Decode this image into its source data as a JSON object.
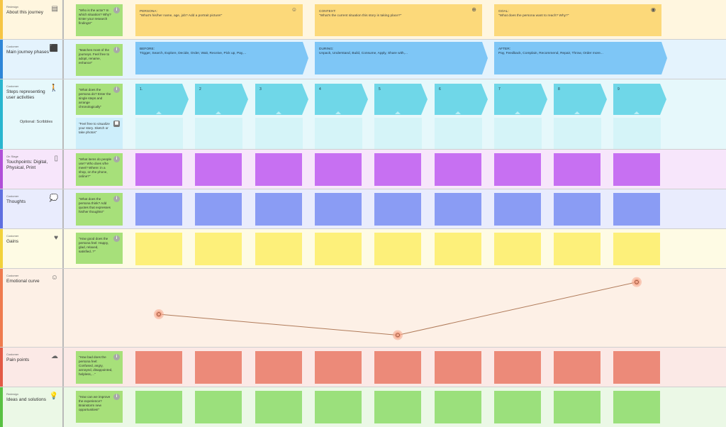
{
  "rows": {
    "about": {
      "tag": "Redesign",
      "title": "About this journey",
      "icon": "document-icon",
      "note": "\"Who is the actor? In which situation? Why? Enter your research findings!\""
    },
    "phases": {
      "tag": "Customer",
      "title": "Main journey phases",
      "icon": "label-tag-icon",
      "note": "\"Matches most of the journeys. Feel free to adopt, rename, enhance\""
    },
    "steps": {
      "tag": "Customer",
      "title": "Steps representing user activities",
      "icon": "walking-person-icon",
      "note": "\"What does the persona do? Enter the single steps and arrange chronologically\"",
      "sub_label": "Optional: Scribbles",
      "sub_note": "\"Feel free to visualize your story. Sketch or take photos\""
    },
    "touchpoints": {
      "tag": "On Stage",
      "title": "Touchpoints: Digital, Physical, Print",
      "icon": "tablet-icon",
      "note": "\"What items do people use? Who does s/he meet? Where: in a shop, on the phone, online?\""
    },
    "thoughts": {
      "tag": "Customer",
      "title": "Thoughts",
      "icon": "thought-bubble-icon",
      "note": "\"What does the persona think? Add quotes that expresses his/her thoughts!\""
    },
    "gains": {
      "tag": "Customer",
      "title": "Gains",
      "icon": "heart-icon",
      "note": "\"How good does the persona feel: Happy, glad, relaxed, satisfied..?\""
    },
    "emotion": {
      "tag": "Customer",
      "title": "Emotional curve",
      "icon": "smiley-icon"
    },
    "pains": {
      "tag": "Customer",
      "title": "Pain points",
      "icon": "broken-cloud-icon",
      "note": "\"How bad does the persona feel: Confused, angry, annoyed, disappointed, helpless,...\""
    },
    "ideas": {
      "tag": "Redesign",
      "title": "Ideas and solutions",
      "icon": "lightbulb-icon",
      "note": "\"How can we improve the experience? Brainstorm new opportunities!\""
    }
  },
  "about_cards": [
    {
      "heading": "PERSONA:",
      "text": "\"What's his/her name, age, job? Add a portrait picture!\"",
      "icon": "face-icon",
      "glyph": "☺"
    },
    {
      "heading": "CONTEXT:",
      "text": "\"What's the current situation this story is taking place?\"",
      "icon": "globe-icon",
      "glyph": "⊕"
    },
    {
      "heading": "GOAL:",
      "text": "\"What does the persona want to reach? Why?\"",
      "icon": "target-icon",
      "glyph": "◉"
    }
  ],
  "phase_cards": [
    {
      "heading": "BEFORE:",
      "text": "Trigger, Search, Explore, Decide, Order, Wait, Receive, Pick up, Pay,..."
    },
    {
      "heading": "DURING:",
      "text": "Unpack, Understand, Build, Consume, Apply, Share with,..."
    },
    {
      "heading": "AFTER:",
      "text": "Pay, Feedback, Complain, Recommend, Repair, Throw, Order more..."
    }
  ],
  "steps": [
    "1.",
    "2",
    "3",
    "4",
    "5",
    "6",
    "7",
    "8",
    "9"
  ],
  "emotional_curve": {
    "points": [
      {
        "step": 1,
        "level": 0.44
      },
      {
        "step": 5,
        "level": 0.09
      },
      {
        "step": 9,
        "level": 0.98
      }
    ]
  },
  "colors": {
    "touchpoints": "#c770f2",
    "thoughts": "#8a9cf4",
    "gains": "#fdf07a",
    "pains": "#ec8a79",
    "ideas": "#9be07c",
    "emotion_line": "#b07b5a",
    "emotion_point": "#f5a88d"
  }
}
